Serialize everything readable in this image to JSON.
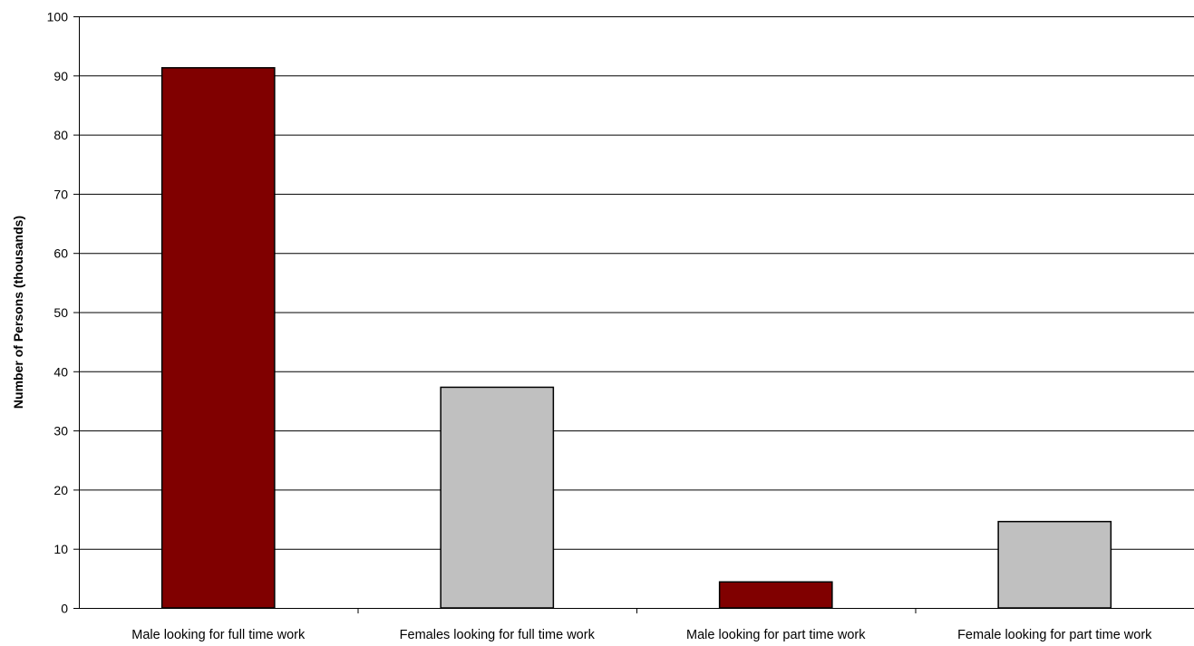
{
  "chart_data": {
    "type": "bar",
    "title": "",
    "xlabel": "",
    "ylabel": "Number of Persons (thousands)",
    "ylim": [
      0,
      100
    ],
    "yticks": [
      0,
      10,
      20,
      30,
      40,
      50,
      60,
      70,
      80,
      90,
      100
    ],
    "grid": true,
    "legend": "none",
    "categories": [
      "Male looking for full time work",
      "Females looking for full time work",
      "Male looking for part time work",
      "Female looking for part time work"
    ],
    "values": [
      91.3,
      37.3,
      4.4,
      14.6
    ],
    "bar_colors": [
      "#800000",
      "#c0c0c0",
      "#800000",
      "#c0c0c0"
    ],
    "grid_color": "#000000",
    "bar_edge_color": "#000000"
  }
}
